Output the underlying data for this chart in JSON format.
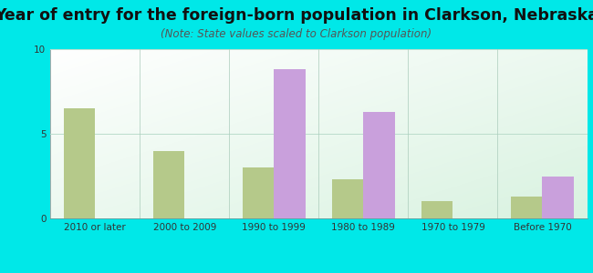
{
  "title": "Year of entry for the foreign-born population in Clarkson, Nebraska",
  "subtitle": "(Note: State values scaled to Clarkson population)",
  "categories": [
    "2010 or later",
    "2000 to 2009",
    "1990 to 1999",
    "1980 to 1989",
    "1970 to 1979",
    "Before 1970"
  ],
  "clarkson_values": [
    0,
    0,
    8.8,
    6.3,
    0,
    2.5
  ],
  "nebraska_values": [
    6.5,
    4.0,
    3.0,
    2.3,
    1.0,
    1.3
  ],
  "clarkson_color": "#c9a0dc",
  "nebraska_color": "#b5c98a",
  "ylim": [
    0,
    10
  ],
  "yticks": [
    0,
    5,
    10
  ],
  "bar_width": 0.35,
  "bg_outer": "#00e8e8",
  "title_fontsize": 12.5,
  "subtitle_fontsize": 8.5,
  "tick_fontsize": 7.5,
  "legend_fontsize": 9
}
